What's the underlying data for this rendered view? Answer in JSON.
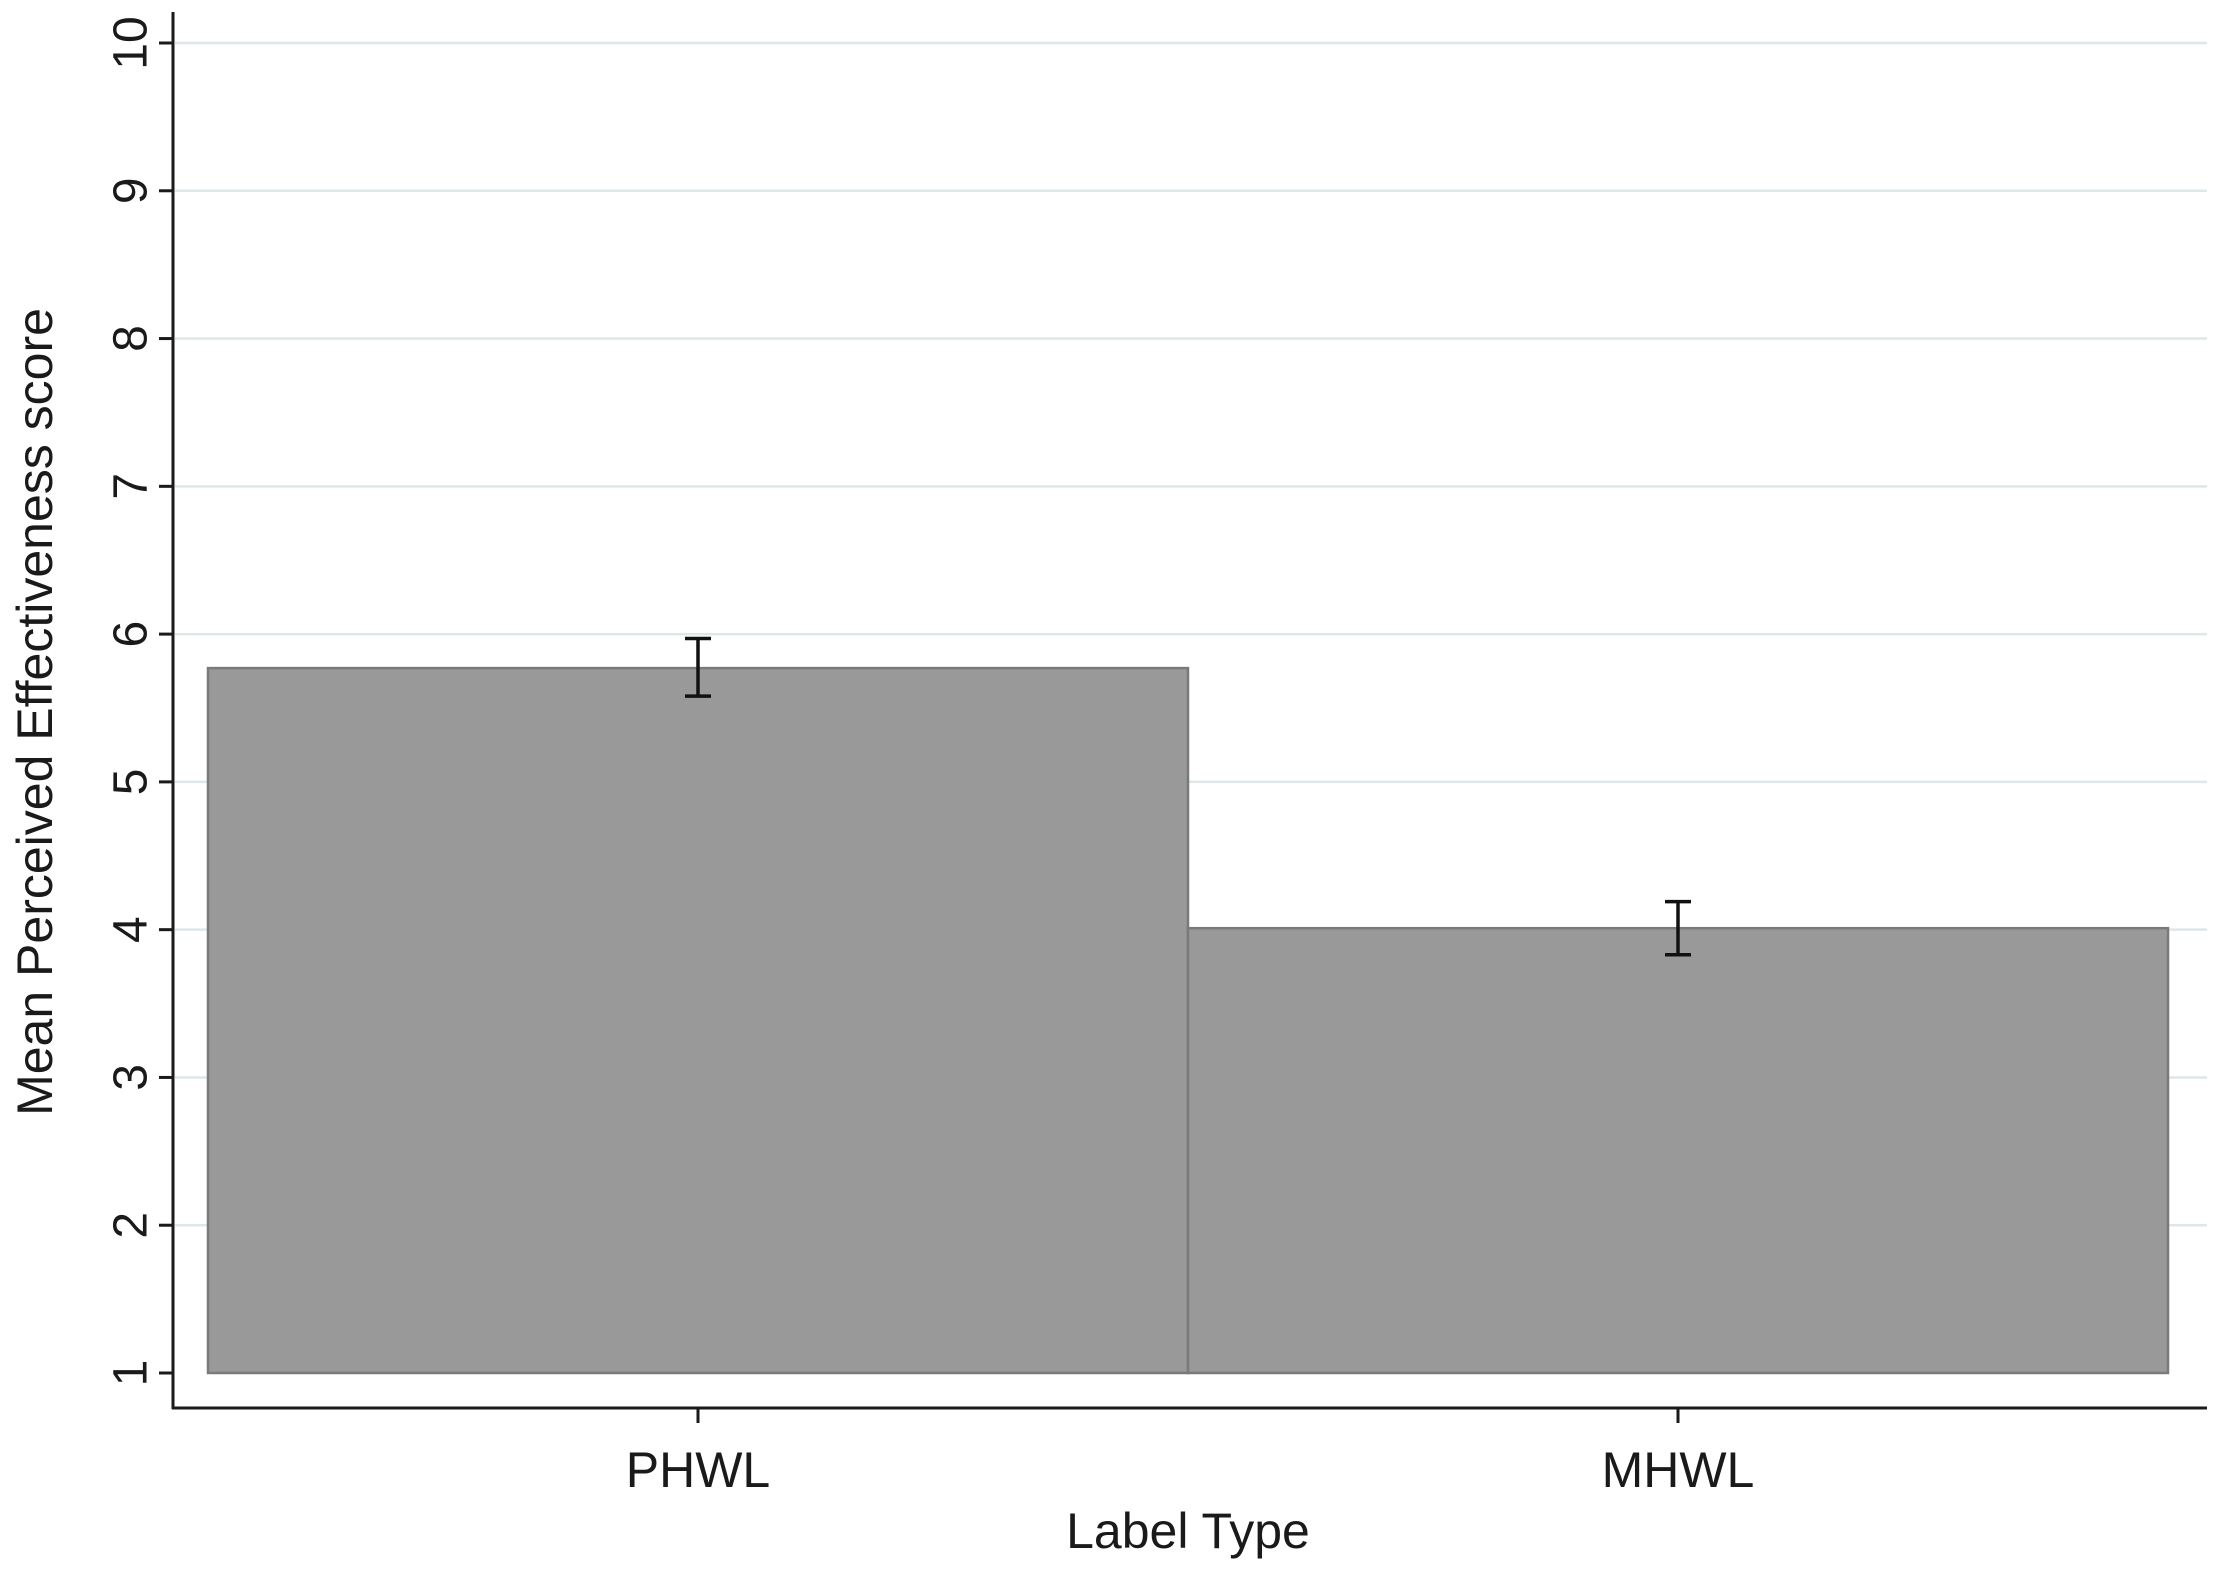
{
  "chart_data": {
    "type": "bar",
    "title": "",
    "xlabel": "Label Type",
    "ylabel": "Mean Perceived Effectiveness score",
    "categories": [
      "PHWL",
      "MHWL"
    ],
    "values": [
      5.77,
      4.01
    ],
    "error_low": [
      5.58,
      3.83
    ],
    "error_high": [
      5.97,
      4.19
    ],
    "ylim": [
      1,
      10
    ],
    "bar_base": 1,
    "yticks": [
      1,
      2,
      3,
      4,
      5,
      6,
      7,
      8,
      9,
      10
    ],
    "grid": true,
    "legend": "none",
    "colors": {
      "bar_fill": "#999999",
      "bar_edge": "#7a7a7a",
      "gridline": "#dde7ea",
      "axis": "#1a1a1a",
      "error_bar": "#111111"
    }
  }
}
